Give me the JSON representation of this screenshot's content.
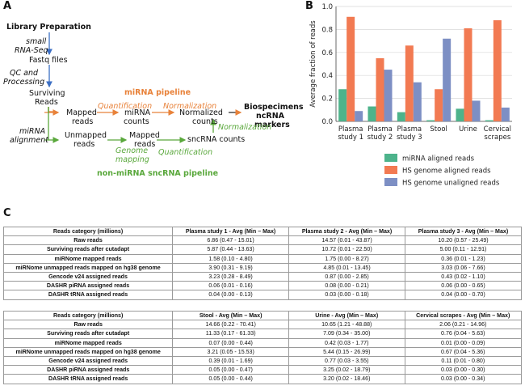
{
  "panels": {
    "a": "A",
    "b": "B",
    "c": "C"
  },
  "flow": {
    "library_prep": "Library Preparation",
    "small_rnaseq_1": "small",
    "small_rnaseq_2": "RNA-Seq",
    "fastq": "Fastq files",
    "qc_1": "QC and",
    "qc_2": "Processing",
    "surviving_1": "Surviving",
    "surviving_2": "Reads",
    "mirna_align_1": "miRNA",
    "mirna_align_2": "alignment",
    "mirna_pipeline": "miRNA pipeline",
    "quantification": "Quantification",
    "normalization": "Normalization",
    "mapped_reads_1": "Mapped",
    "mapped_reads_2": "reads",
    "mirna_counts_1": "miRNA",
    "mirna_counts_2": "counts",
    "normalized_1": "Normalized",
    "normalized_2": "counts",
    "biospec_1": "Biospecimens",
    "biospec_2": "ncRNA",
    "biospec_3": "markers",
    "unmapped_1": "Unmapped",
    "unmapped_2": "reads",
    "mapped2_1": "Mapped",
    "mapped2_2": "reads",
    "sncrna_counts": "sncRNA counts",
    "normalization2": "Normalization",
    "genome_1": "Genome",
    "genome_2": "mapping",
    "quantification2": "Quantification",
    "non_mirna_pipeline": "non-miRNA sncRNA pipeline"
  },
  "chart_data": {
    "type": "bar",
    "ylabel": "Average fraction of reads",
    "ylim": [
      0,
      1.0
    ],
    "yticks": [
      "0.0",
      "0.2",
      "0.4",
      "0.6",
      "0.8",
      "1.0"
    ],
    "categories": [
      [
        "Plasma",
        "study 1"
      ],
      [
        "Plasma",
        "study 2"
      ],
      [
        "Plasma",
        "study 3"
      ],
      [
        "Stool"
      ],
      [
        "Urine"
      ],
      [
        "Cervical",
        "scrapes"
      ]
    ],
    "series": [
      {
        "name": "miRNA aligned reads",
        "color": "#4db38b",
        "values": [
          0.28,
          0.13,
          0.08,
          0.01,
          0.11,
          0.01
        ]
      },
      {
        "name": "HS genome aligned reads",
        "color": "#f27a52",
        "values": [
          0.91,
          0.55,
          0.66,
          0.28,
          0.81,
          0.88
        ]
      },
      {
        "name": "HS genome unaligned reads",
        "color": "#7d8fc4",
        "values": [
          0.09,
          0.45,
          0.34,
          0.72,
          0.18,
          0.12
        ]
      }
    ]
  },
  "table1": {
    "headers": [
      "Reads category (millions)",
      "Plasma study 1 - Avg (Min – Max)",
      "Plasma study 2 - Avg (Min – Max)",
      "Plasma study 3 - Avg (Min – Max)"
    ],
    "rows": [
      [
        "Raw reads",
        "6.86 (0.47 - 15.01)",
        "14.57 (0.01 - 43.87)",
        "10.20 (0.57 - 25.49)"
      ],
      [
        "Surviving reads after cutadapt",
        "5.87 (0.44 - 13.63)",
        "10.72 (0.01 - 22.50)",
        "5.00 (0.11 - 12.91)"
      ],
      [
        "miRNome mapped reads",
        "1.58 (0.10 - 4.80)",
        "1.75 (0.00 - 8.27)",
        "0.36 (0.01 - 1.23)"
      ],
      [
        "miRNome unmapped reads mapped on hg38 genome",
        "3.90 (0.31 - 9.19)",
        "4.85 (0.01 - 13.45)",
        "3.03 (0.06 - 7.66)"
      ],
      [
        "Gencode v24 assigned reads",
        "3.23 (0.28 - 8.49)",
        "0.87 (0.00 - 2.85)",
        "0.43 (0.02 - 1.10)"
      ],
      [
        "DASHR piRNA assigned reads",
        "0.06 (0.01 - 0.16)",
        "0.08 (0.00 - 0.21)",
        "0.06 (0.00 - 0.65)"
      ],
      [
        "DASHR tRNA assigned reads",
        "0.04 (0.00 - 0.13)",
        "0.03 (0.00 - 0.18)",
        "0.04 (0.00 - 0.70)"
      ]
    ]
  },
  "table2": {
    "headers": [
      "Reads category (millions)",
      "Stool - Avg (Min – Max)",
      "Urine - Avg (Min – Max)",
      "Cervical scrapes - Avg (Min – Max)"
    ],
    "rows": [
      [
        "Raw reads",
        "14.66 (0.22 - 70.41)",
        "10.65 (1.21 - 48.88)",
        "2.06 (0.21 - 14.96)"
      ],
      [
        "Surviving reads after cutadapt",
        "11.33 (0.17 - 61.33)",
        "7.09 (0.34 - 35.00)",
        "0.76 (0.04 - 5.63)"
      ],
      [
        "miRNome mapped reads",
        "0.07 (0.00 - 0.44)",
        "0.42 (0.03 - 1.77)",
        "0.01 (0.00 - 0.09)"
      ],
      [
        "miRNome unmapped reads mapped on hg38 genome",
        "3.21 (0.05 - 15.53)",
        "5.44 (0.15 - 26.99)",
        "0.67 (0.04 - 5.36)"
      ],
      [
        "Gencode v24 assigned reads",
        "0.39 (0.01 - 1.69)",
        "0.77 (0.03 - 3.55)",
        "0.11 (0.01 - 0.80)"
      ],
      [
        "DASHR piRNA assigned reads",
        "0.05 (0.00 - 0.47)",
        "3.25 (0.02 - 18.79)",
        "0.03 (0.00 - 0.30)"
      ],
      [
        "DASHR tRNA assigned reads",
        "0.05 (0.00 - 0.44)",
        "3.20 (0.02 - 18.46)",
        "0.03 (0.00 - 0.34)"
      ]
    ]
  }
}
